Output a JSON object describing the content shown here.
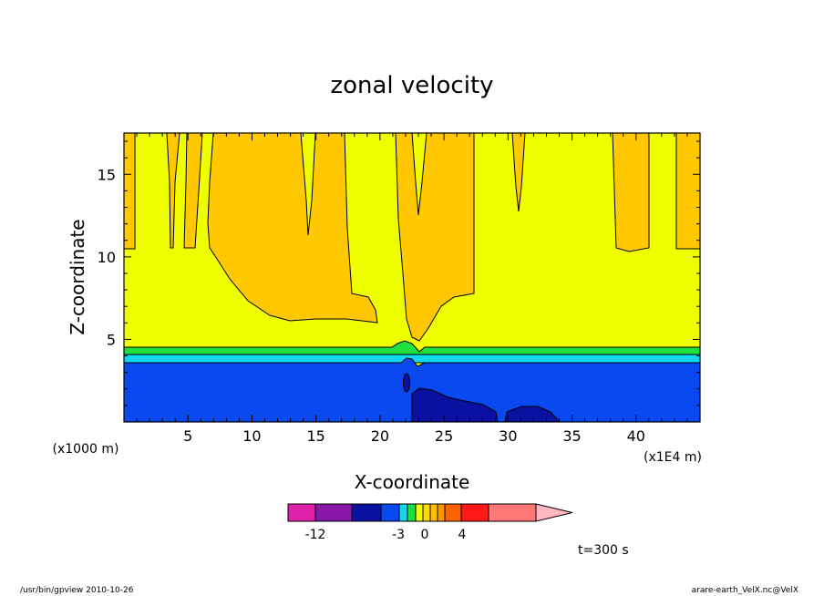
{
  "chart_data": {
    "type": "heatmap",
    "title": "zonal velocity",
    "xlabel": "X-coordinate",
    "ylabel": "Z-coordinate",
    "x_unit": "(x1E4 m)",
    "y_unit": "(x1000 m)",
    "xlim": [
      0,
      45
    ],
    "ylim": [
      0,
      17.5
    ],
    "x_ticks": [
      "5",
      "10",
      "15",
      "20",
      "25",
      "30",
      "35",
      "40"
    ],
    "y_ticks": [
      "5",
      "10",
      "15"
    ],
    "time_label": "t=300 s",
    "colorbar": {
      "colors": [
        "#e020a8",
        "#8818a8",
        "#0a10a0",
        "#0a48f0",
        "#10d8f0",
        "#20e040",
        "#f0ff00",
        "#ffd800",
        "#ffc000",
        "#ff9800",
        "#ff6000",
        "#ff1818",
        "#ff7878",
        "#ffb8c0"
      ],
      "tick_labels": [
        "-12",
        "-3",
        "0",
        "4"
      ]
    },
    "regions": [
      {
        "name": "background",
        "color": "#f0ff00"
      },
      {
        "name": "positive-upper",
        "color": "#ffc800"
      },
      {
        "name": "green-band",
        "color": "#20e040"
      },
      {
        "name": "cyan-band",
        "color": "#10d8f0"
      },
      {
        "name": "blue-lower",
        "color": "#0a48f0"
      },
      {
        "name": "darkblue-core",
        "color": "#0a10a0"
      }
    ]
  },
  "footer": {
    "left": "/usr/bin/gpview  2010-10-26",
    "right": "arare-earth_VelX.nc@VelX"
  }
}
